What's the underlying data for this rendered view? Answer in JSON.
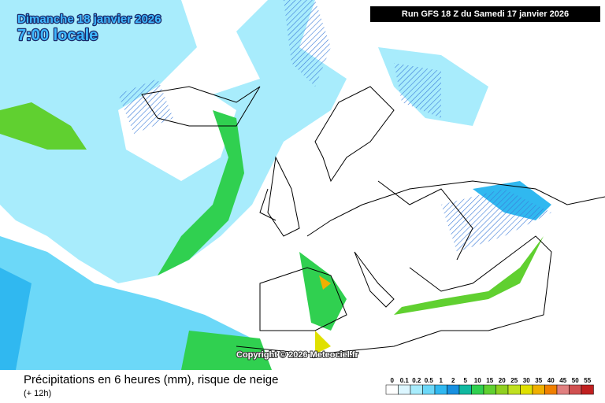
{
  "header": {
    "date": "Dimanche 18 janvier 2026",
    "time": "7:00 locale",
    "run": "Run GFS 18 Z du Samedi 17 janvier 2026"
  },
  "map": {
    "copyright": "Copyright © 2026 Meteociel.fr"
  },
  "legend": {
    "title": "Précipitations en 6 heures (mm), risque de neige",
    "subtitle": "(+ 12h)",
    "stops": [
      {
        "value": 0,
        "color": "#ffffff"
      },
      {
        "value": 0.1,
        "color": "#dcf6ff"
      },
      {
        "value": 0.2,
        "color": "#a8ecfc"
      },
      {
        "value": 0.5,
        "color": "#6cd8f8"
      },
      {
        "value": 1,
        "color": "#30b8f0"
      },
      {
        "value": 2,
        "color": "#1890e0"
      },
      {
        "value": 5,
        "color": "#10b8a0"
      },
      {
        "value": 10,
        "color": "#30d050"
      },
      {
        "value": 15,
        "color": "#60d030"
      },
      {
        "value": 20,
        "color": "#90d020"
      },
      {
        "value": 25,
        "color": "#c0e020"
      },
      {
        "value": 30,
        "color": "#e0e000"
      },
      {
        "value": 35,
        "color": "#f0b000"
      },
      {
        "value": 40,
        "color": "#f08000"
      },
      {
        "value": 45,
        "color": "#e08080"
      },
      {
        "value": 50,
        "color": "#d05050"
      },
      {
        "value": 55,
        "color": "#c02020"
      }
    ]
  }
}
